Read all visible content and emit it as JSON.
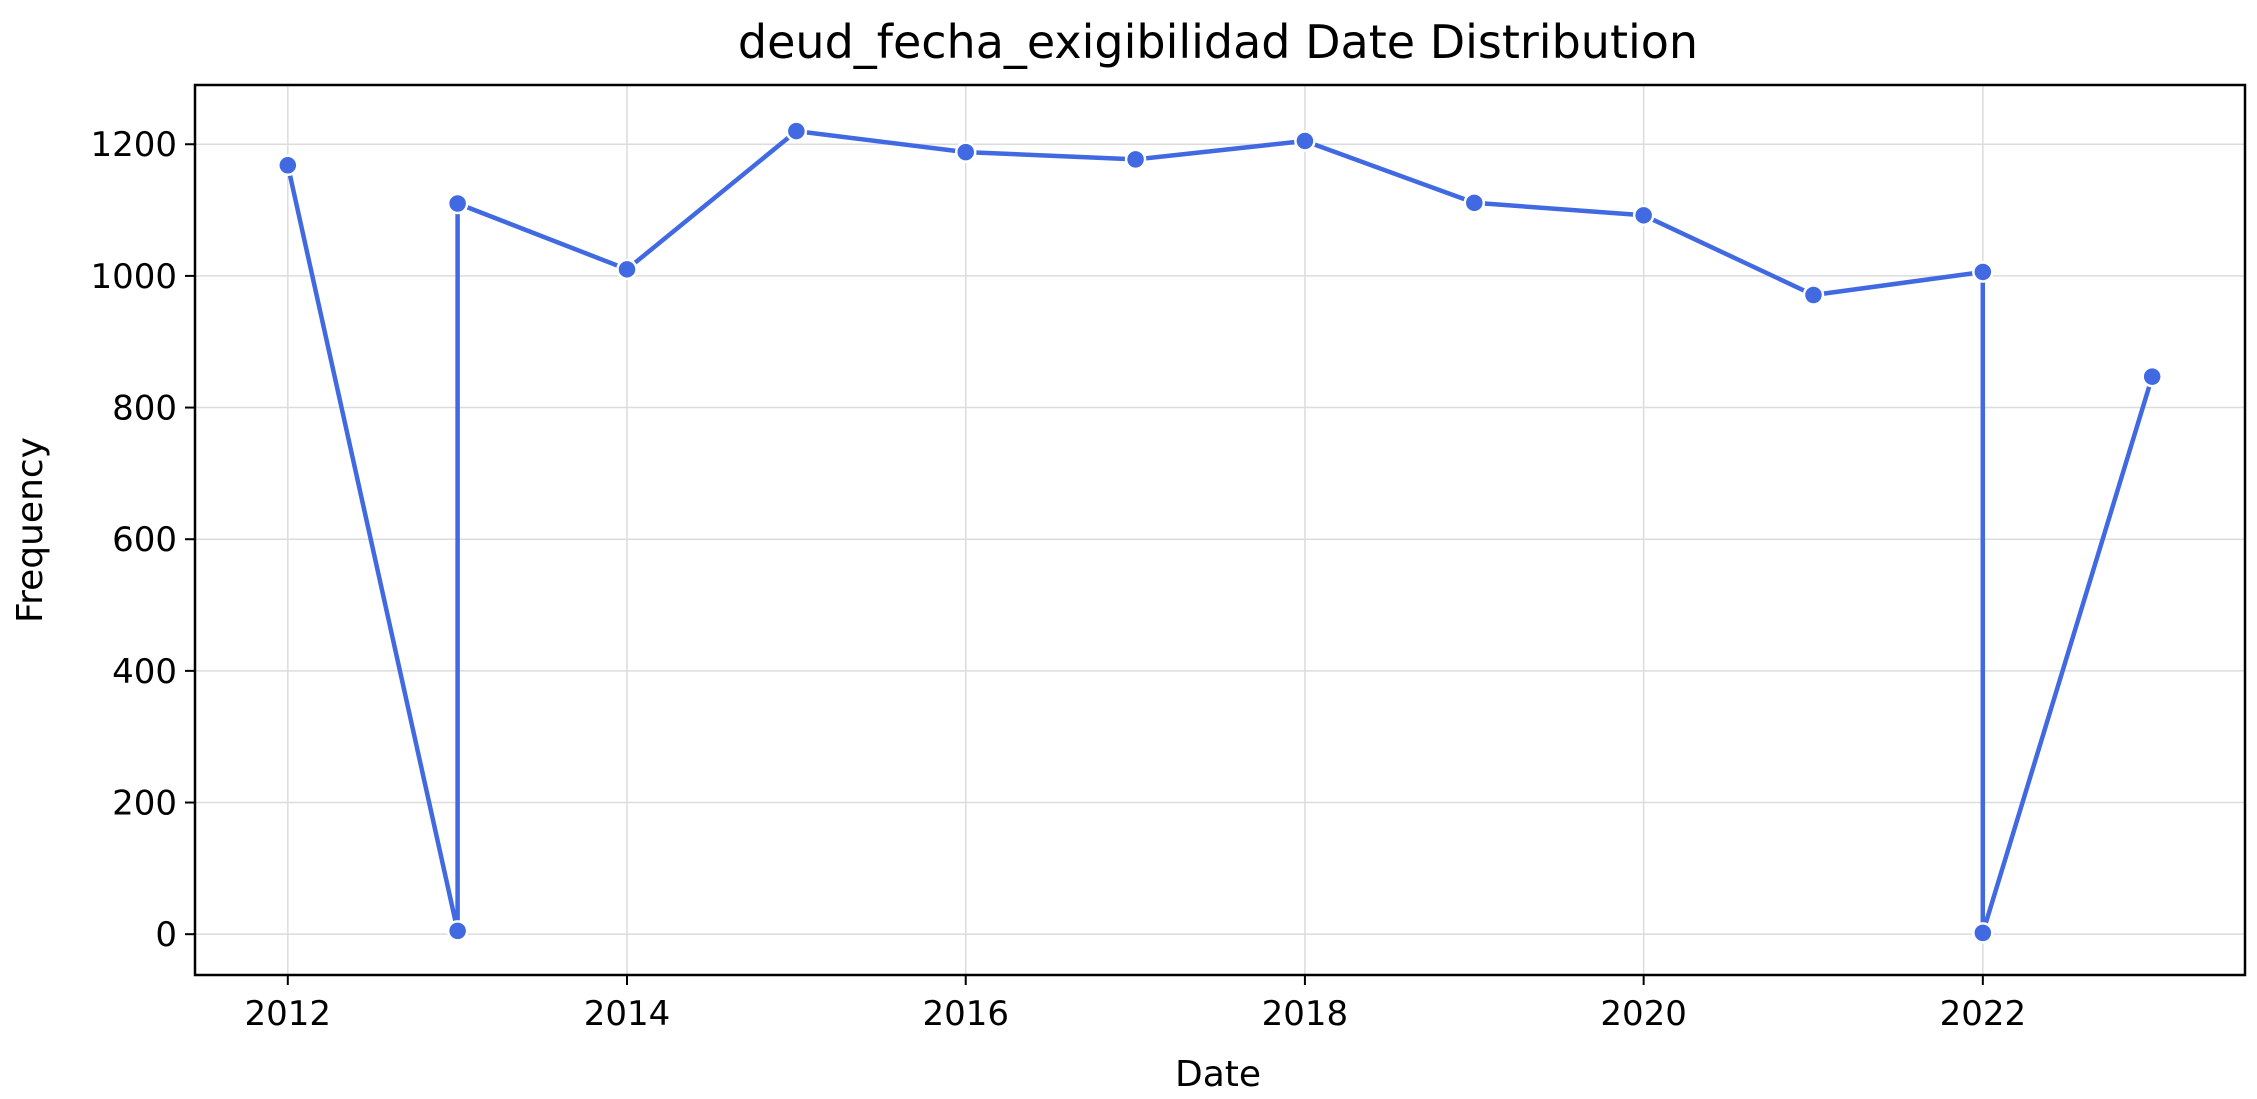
{
  "chart_data": {
    "type": "line",
    "title": "deud_fecha_exigibilidad Date Distribution",
    "xlabel": "Date",
    "ylabel": "Frequency",
    "x_ticks": [
      "2012",
      "2014",
      "2016",
      "2018",
      "2020",
      "2022"
    ],
    "y_ticks": [
      0,
      200,
      400,
      600,
      800,
      1000,
      1200
    ],
    "xlim": [
      "2011-06-15",
      "2023-07-20"
    ],
    "ylim": [
      -62,
      1290
    ],
    "grid": true,
    "color": "#4169e1",
    "series": [
      {
        "points": [
          {
            "x": "2012-01-01",
            "y": 1168
          },
          {
            "x": "2013-01-01",
            "y": 5
          },
          {
            "x": "2013-01-01",
            "y": 1110
          },
          {
            "x": "2014-01-01",
            "y": 1010
          },
          {
            "x": "2015-01-01",
            "y": 1220
          },
          {
            "x": "2016-01-01",
            "y": 1188
          },
          {
            "x": "2017-01-01",
            "y": 1177
          },
          {
            "x": "2018-01-01",
            "y": 1205
          },
          {
            "x": "2019-01-01",
            "y": 1111
          },
          {
            "x": "2020-01-01",
            "y": 1092
          },
          {
            "x": "2021-01-01",
            "y": 971
          },
          {
            "x": "2022-01-01",
            "y": 1006
          },
          {
            "x": "2022-01-01",
            "y": 2
          },
          {
            "x": "2023-01-01",
            "y": 847
          }
        ]
      }
    ]
  }
}
